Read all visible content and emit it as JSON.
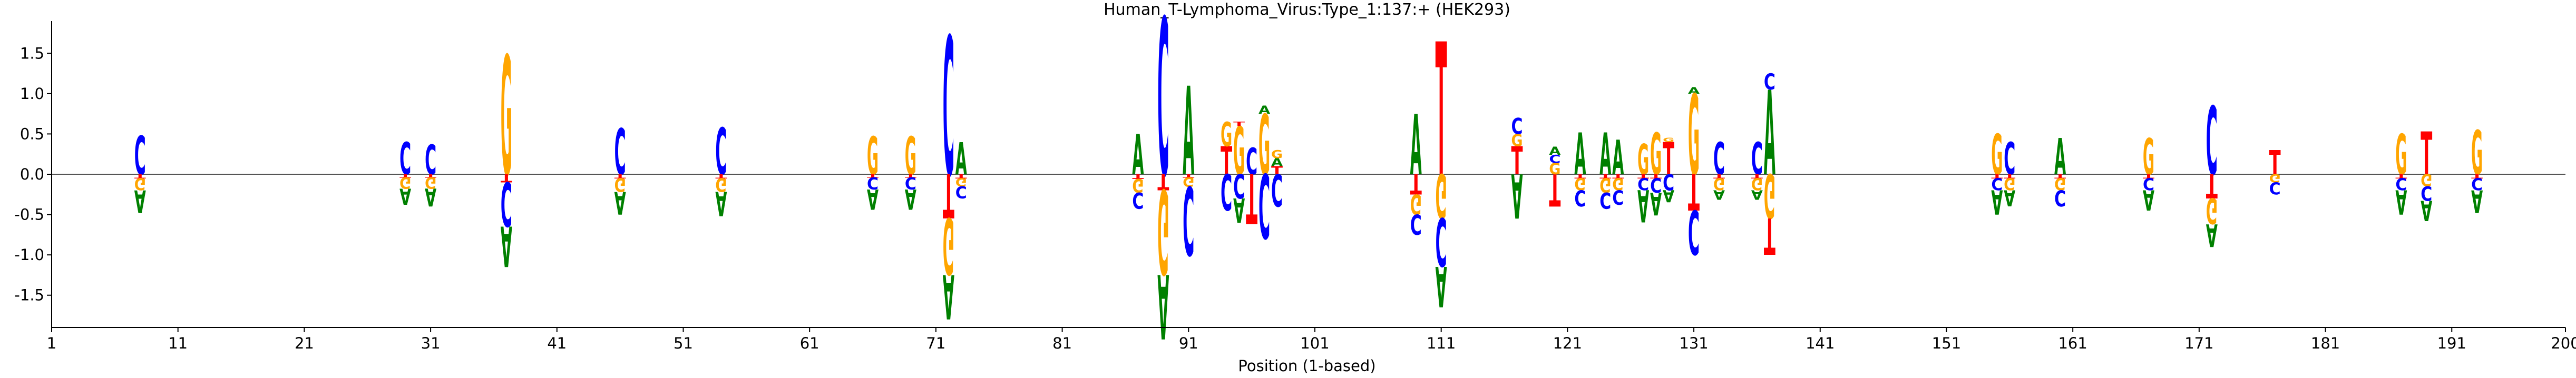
{
  "chart_data": {
    "type": "sequence_logo",
    "title": "Human_T-Lymphoma_Virus:Type_1:137:+  (HEK293)",
    "xlabel": "Position (1-based)",
    "ylabel": "",
    "xlim": [
      1,
      200
    ],
    "ylim": [
      -1.9,
      1.9
    ],
    "x_ticks": [
      1,
      11,
      21,
      31,
      41,
      51,
      61,
      71,
      81,
      91,
      101,
      111,
      121,
      131,
      141,
      151,
      161,
      171,
      181,
      191,
      200
    ],
    "y_ticks": [
      -1.5,
      -1.0,
      -0.5,
      0.0,
      0.5,
      1.0,
      1.5
    ],
    "grid": false,
    "legend": "none",
    "colors": {
      "A": "#008000",
      "C": "#0000ff",
      "G": "#ffa500",
      "T": "#ff0000"
    },
    "columns": [
      {
        "pos": 8,
        "up": [
          [
            "C",
            0.48
          ]
        ],
        "down": [
          [
            "T",
            0.05
          ],
          [
            "G",
            0.15
          ],
          [
            "A",
            0.28
          ]
        ]
      },
      {
        "pos": 29,
        "up": [
          [
            "C",
            0.4
          ]
        ],
        "down": [
          [
            "T",
            0.04
          ],
          [
            "G",
            0.14
          ],
          [
            "A",
            0.2
          ]
        ]
      },
      {
        "pos": 31,
        "up": [
          [
            "C",
            0.37
          ]
        ],
        "down": [
          [
            "T",
            0.04
          ],
          [
            "G",
            0.14
          ],
          [
            "A",
            0.22
          ]
        ]
      },
      {
        "pos": 37,
        "up": [
          [
            "G",
            1.48
          ]
        ],
        "down": [
          [
            "T",
            0.1
          ],
          [
            "C",
            0.55
          ],
          [
            "A",
            0.5
          ]
        ]
      },
      {
        "pos": 46,
        "up": [
          [
            "C",
            0.57
          ]
        ],
        "down": [
          [
            "T",
            0.05
          ],
          [
            "G",
            0.17
          ],
          [
            "A",
            0.28
          ]
        ]
      },
      {
        "pos": 54,
        "up": [
          [
            "C",
            0.58
          ]
        ],
        "down": [
          [
            "T",
            0.05
          ],
          [
            "G",
            0.17
          ],
          [
            "A",
            0.3
          ]
        ]
      },
      {
        "pos": 66,
        "up": [
          [
            "G",
            0.47
          ]
        ],
        "down": [
          [
            "T",
            0.04
          ],
          [
            "C",
            0.15
          ],
          [
            "A",
            0.25
          ]
        ]
      },
      {
        "pos": 69,
        "up": [
          [
            "G",
            0.47
          ]
        ],
        "down": [
          [
            "T",
            0.04
          ],
          [
            "C",
            0.15
          ],
          [
            "A",
            0.25
          ]
        ]
      },
      {
        "pos": 72,
        "up": [
          [
            "C",
            1.72
          ]
        ],
        "down": [
          [
            "T",
            0.55
          ],
          [
            "G",
            0.7
          ],
          [
            "A",
            0.55
          ]
        ]
      },
      {
        "pos": 73,
        "up": [
          [
            "A",
            0.4
          ]
        ],
        "down": [
          [
            "T",
            0.05
          ],
          [
            "G",
            0.1
          ],
          [
            "C",
            0.15
          ]
        ]
      },
      {
        "pos": 87,
        "up": [
          [
            "A",
            0.5
          ]
        ],
        "down": [
          [
            "T",
            0.06
          ],
          [
            "G",
            0.17
          ],
          [
            "C",
            0.2
          ]
        ]
      },
      {
        "pos": 89,
        "up": [
          [
            "C",
            1.95
          ]
        ],
        "down": [
          [
            "T",
            0.2
          ],
          [
            "G",
            1.05
          ],
          [
            "A",
            0.8
          ]
        ]
      },
      {
        "pos": 91,
        "up": [
          [
            "A",
            1.1
          ]
        ],
        "down": [
          [
            "T",
            0.04
          ],
          [
            "G",
            0.12
          ],
          [
            "C",
            0.85
          ]
        ]
      },
      {
        "pos": 94,
        "up": [
          [
            "T",
            0.35
          ],
          [
            "G",
            0.3
          ]
        ],
        "down": [
          [
            "C",
            0.45
          ]
        ]
      },
      {
        "pos": 95,
        "up": [
          [
            "G",
            0.6
          ],
          [
            "T",
            0.05
          ]
        ],
        "down": [
          [
            "C",
            0.3
          ],
          [
            "A",
            0.3
          ]
        ]
      },
      {
        "pos": 96,
        "up": [
          [
            "C",
            0.33
          ]
        ],
        "down": [
          [
            "T",
            0.62
          ]
        ]
      },
      {
        "pos": 97,
        "up": [
          [
            "G",
            0.75
          ],
          [
            "A",
            0.1
          ]
        ],
        "down": [
          [
            "C",
            0.8
          ]
        ]
      },
      {
        "pos": 98,
        "up": [
          [
            "T",
            0.1
          ],
          [
            "A",
            0.1
          ],
          [
            "G",
            0.1
          ]
        ],
        "down": [
          [
            "C",
            0.4
          ]
        ]
      },
      {
        "pos": 109,
        "up": [
          [
            "A",
            0.75
          ]
        ],
        "down": [
          [
            "T",
            0.25
          ],
          [
            "G",
            0.25
          ],
          [
            "C",
            0.25
          ]
        ]
      },
      {
        "pos": 111,
        "up": [
          [
            "T",
            1.65
          ]
        ],
        "down": [
          [
            "G",
            0.55
          ],
          [
            "C",
            0.6
          ],
          [
            "A",
            0.5
          ]
        ]
      },
      {
        "pos": 117,
        "up": [
          [
            "T",
            0.35
          ],
          [
            "G",
            0.15
          ],
          [
            "C",
            0.2
          ]
        ],
        "down": [
          [
            "A",
            0.55
          ]
        ]
      },
      {
        "pos": 120,
        "up": [
          [
            "G",
            0.14
          ],
          [
            "C",
            0.1
          ],
          [
            "A",
            0.1
          ]
        ],
        "down": [
          [
            "T",
            0.4
          ]
        ]
      },
      {
        "pos": 122,
        "up": [
          [
            "A",
            0.52
          ]
        ],
        "down": [
          [
            "T",
            0.05
          ],
          [
            "G",
            0.15
          ],
          [
            "C",
            0.2
          ]
        ]
      },
      {
        "pos": 124,
        "up": [
          [
            "A",
            0.52
          ]
        ],
        "down": [
          [
            "T",
            0.05
          ],
          [
            "G",
            0.18
          ],
          [
            "C",
            0.2
          ]
        ]
      },
      {
        "pos": 125,
        "up": [
          [
            "A",
            0.43
          ]
        ],
        "down": [
          [
            "T",
            0.05
          ],
          [
            "G",
            0.15
          ],
          [
            "C",
            0.18
          ]
        ]
      },
      {
        "pos": 127,
        "up": [
          [
            "G",
            0.38
          ]
        ],
        "down": [
          [
            "T",
            0.05
          ],
          [
            "C",
            0.15
          ],
          [
            "A",
            0.4
          ]
        ]
      },
      {
        "pos": 128,
        "up": [
          [
            "G",
            0.52
          ]
        ],
        "down": [
          [
            "T",
            0.05
          ],
          [
            "C",
            0.18
          ],
          [
            "A",
            0.28
          ]
        ]
      },
      {
        "pos": 129,
        "up": [
          [
            "T",
            0.4
          ],
          [
            "G",
            0.05
          ]
        ],
        "down": [
          [
            "C",
            0.2
          ],
          [
            "A",
            0.15
          ]
        ]
      },
      {
        "pos": 131,
        "up": [
          [
            "G",
            1.0
          ],
          [
            "A",
            0.08
          ]
        ],
        "down": [
          [
            "T",
            0.45
          ],
          [
            "C",
            0.55
          ]
        ]
      },
      {
        "pos": 133,
        "up": [
          [
            "C",
            0.4
          ]
        ],
        "down": [
          [
            "T",
            0.05
          ],
          [
            "G",
            0.15
          ],
          [
            "A",
            0.12
          ]
        ]
      },
      {
        "pos": 136,
        "up": [
          [
            "C",
            0.4
          ]
        ],
        "down": [
          [
            "T",
            0.05
          ],
          [
            "G",
            0.15
          ],
          [
            "A",
            0.12
          ]
        ]
      },
      {
        "pos": 137,
        "up": [
          [
            "A",
            1.05
          ],
          [
            "C",
            0.2
          ]
        ],
        "down": [
          [
            "G",
            0.55
          ],
          [
            "T",
            0.45
          ]
        ]
      },
      {
        "pos": 155,
        "up": [
          [
            "G",
            0.5
          ]
        ],
        "down": [
          [
            "T",
            0.05
          ],
          [
            "C",
            0.15
          ],
          [
            "A",
            0.3
          ]
        ]
      },
      {
        "pos": 156,
        "up": [
          [
            "C",
            0.4
          ]
        ],
        "down": [
          [
            "T",
            0.05
          ],
          [
            "G",
            0.15
          ],
          [
            "A",
            0.2
          ]
        ]
      },
      {
        "pos": 160,
        "up": [
          [
            "A",
            0.45
          ]
        ],
        "down": [
          [
            "T",
            0.05
          ],
          [
            "G",
            0.15
          ],
          [
            "C",
            0.2
          ]
        ]
      },
      {
        "pos": 167,
        "up": [
          [
            "G",
            0.45
          ]
        ],
        "down": [
          [
            "T",
            0.05
          ],
          [
            "C",
            0.15
          ],
          [
            "A",
            0.25
          ]
        ]
      },
      {
        "pos": 172,
        "up": [
          [
            "C",
            0.85
          ]
        ],
        "down": [
          [
            "T",
            0.3
          ],
          [
            "G",
            0.32
          ],
          [
            "A",
            0.28
          ]
        ]
      },
      {
        "pos": 177,
        "up": [
          [
            "T",
            0.3
          ]
        ],
        "down": [
          [
            "G",
            0.1
          ],
          [
            "C",
            0.15
          ]
        ]
      },
      {
        "pos": 187,
        "up": [
          [
            "G",
            0.5
          ]
        ],
        "down": [
          [
            "T",
            0.05
          ],
          [
            "C",
            0.15
          ],
          [
            "A",
            0.3
          ]
        ]
      },
      {
        "pos": 189,
        "up": [
          [
            "T",
            0.53
          ]
        ],
        "down": [
          [
            "G",
            0.15
          ],
          [
            "C",
            0.18
          ],
          [
            "A",
            0.25
          ]
        ]
      },
      {
        "pos": 193,
        "up": [
          [
            "G",
            0.55
          ]
        ],
        "down": [
          [
            "T",
            0.05
          ],
          [
            "C",
            0.15
          ],
          [
            "A",
            0.28
          ]
        ]
      }
    ]
  }
}
